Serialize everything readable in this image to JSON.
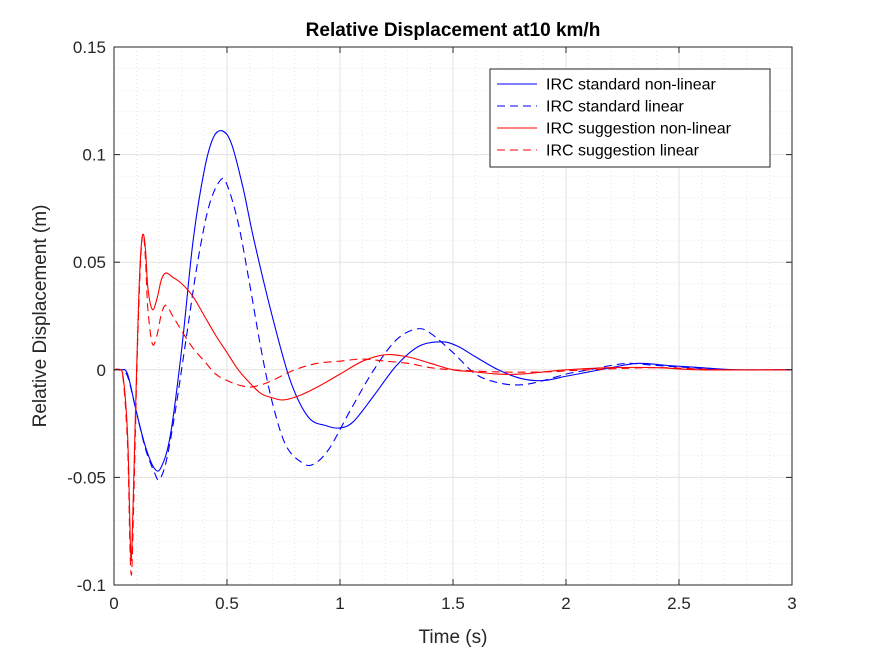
{
  "chart_data": {
    "type": "line",
    "title": "Relative Displacement at10 km/h",
    "xlabel": "Time (s)",
    "ylabel": "Relative Displacement (m)",
    "xlim": [
      0,
      3
    ],
    "ylim": [
      -0.1,
      0.15
    ],
    "xticks": [
      0,
      0.5,
      1,
      1.5,
      2,
      2.5,
      3
    ],
    "xtick_labels": [
      "0",
      "0.5",
      "1",
      "1.5",
      "2",
      "2.5",
      "3"
    ],
    "yticks": [
      -0.1,
      -0.05,
      0,
      0.05,
      0.1,
      0.15
    ],
    "ytick_labels": [
      "-0.1",
      "-0.05",
      "0",
      "0.05",
      "0.1",
      "0.15"
    ],
    "grid": true,
    "minor_grid": true,
    "legend_position": "top-right",
    "series": [
      {
        "name": "IRC standard non-linear",
        "color": "#0000ff",
        "dash": "solid",
        "points": [
          [
            0,
            0
          ],
          [
            0.03,
            0
          ],
          [
            0.06,
            -0.002
          ],
          [
            0.1,
            -0.02
          ],
          [
            0.14,
            -0.036
          ],
          [
            0.18,
            -0.046
          ],
          [
            0.21,
            -0.045
          ],
          [
            0.25,
            -0.03
          ],
          [
            0.3,
            0.01
          ],
          [
            0.35,
            0.06
          ],
          [
            0.4,
            0.093
          ],
          [
            0.44,
            0.108
          ],
          [
            0.48,
            0.111
          ],
          [
            0.52,
            0.105
          ],
          [
            0.57,
            0.085
          ],
          [
            0.62,
            0.06
          ],
          [
            0.7,
            0.025
          ],
          [
            0.78,
            -0.005
          ],
          [
            0.86,
            -0.022
          ],
          [
            0.94,
            -0.026
          ],
          [
            1.0,
            -0.027
          ],
          [
            1.06,
            -0.024
          ],
          [
            1.15,
            -0.012
          ],
          [
            1.25,
            0.002
          ],
          [
            1.35,
            0.011
          ],
          [
            1.45,
            0.013
          ],
          [
            1.52,
            0.011
          ],
          [
            1.6,
            0.006
          ],
          [
            1.7,
            0.0
          ],
          [
            1.8,
            -0.004
          ],
          [
            1.9,
            -0.005
          ],
          [
            2.0,
            -0.003
          ],
          [
            2.1,
            -0.001
          ],
          [
            2.2,
            0.001
          ],
          [
            2.32,
            0.003
          ],
          [
            2.45,
            0.002
          ],
          [
            2.6,
            0.001
          ],
          [
            2.75,
            0.0
          ],
          [
            3.0,
            0.0
          ]
        ]
      },
      {
        "name": "IRC standard linear",
        "color": "#0000ff",
        "dash": "dashed",
        "points": [
          [
            0,
            0
          ],
          [
            0.03,
            0
          ],
          [
            0.06,
            -0.003
          ],
          [
            0.1,
            -0.02
          ],
          [
            0.14,
            -0.037
          ],
          [
            0.18,
            -0.048
          ],
          [
            0.2,
            -0.051
          ],
          [
            0.23,
            -0.043
          ],
          [
            0.27,
            -0.02
          ],
          [
            0.32,
            0.015
          ],
          [
            0.37,
            0.05
          ],
          [
            0.42,
            0.076
          ],
          [
            0.47,
            0.088
          ],
          [
            0.5,
            0.086
          ],
          [
            0.55,
            0.068
          ],
          [
            0.6,
            0.04
          ],
          [
            0.65,
            0.01
          ],
          [
            0.7,
            -0.015
          ],
          [
            0.76,
            -0.035
          ],
          [
            0.83,
            -0.043
          ],
          [
            0.88,
            -0.044
          ],
          [
            0.95,
            -0.037
          ],
          [
            1.05,
            -0.018
          ],
          [
            1.15,
            0.0
          ],
          [
            1.25,
            0.014
          ],
          [
            1.34,
            0.019
          ],
          [
            1.4,
            0.017
          ],
          [
            1.5,
            0.008
          ],
          [
            1.6,
            -0.002
          ],
          [
            1.7,
            -0.006
          ],
          [
            1.8,
            -0.007
          ],
          [
            1.9,
            -0.005
          ],
          [
            2.0,
            -0.002
          ],
          [
            2.1,
            0.0
          ],
          [
            2.2,
            0.002
          ],
          [
            2.28,
            0.003
          ],
          [
            2.4,
            0.002
          ],
          [
            2.55,
            0.001
          ],
          [
            2.7,
            0.0
          ],
          [
            3.0,
            0.0
          ]
        ]
      },
      {
        "name": "IRC suggestion non-linear",
        "color": "#ff0000",
        "dash": "solid",
        "points": [
          [
            0,
            0
          ],
          [
            0.02,
            0
          ],
          [
            0.04,
            -0.003
          ],
          [
            0.06,
            -0.03
          ],
          [
            0.07,
            -0.07
          ],
          [
            0.075,
            -0.088
          ],
          [
            0.08,
            -0.08
          ],
          [
            0.09,
            -0.04
          ],
          [
            0.1,
            0.0
          ],
          [
            0.11,
            0.035
          ],
          [
            0.12,
            0.057
          ],
          [
            0.13,
            0.063
          ],
          [
            0.14,
            0.055
          ],
          [
            0.15,
            0.038
          ],
          [
            0.17,
            0.028
          ],
          [
            0.19,
            0.033
          ],
          [
            0.21,
            0.042
          ],
          [
            0.23,
            0.045
          ],
          [
            0.26,
            0.043
          ],
          [
            0.3,
            0.04
          ],
          [
            0.35,
            0.034
          ],
          [
            0.4,
            0.025
          ],
          [
            0.45,
            0.016
          ],
          [
            0.5,
            0.008
          ],
          [
            0.55,
            0.0
          ],
          [
            0.6,
            -0.006
          ],
          [
            0.65,
            -0.011
          ],
          [
            0.7,
            -0.013
          ],
          [
            0.75,
            -0.014
          ],
          [
            0.82,
            -0.012
          ],
          [
            0.9,
            -0.008
          ],
          [
            1.0,
            -0.002
          ],
          [
            1.1,
            0.004
          ],
          [
            1.2,
            0.007
          ],
          [
            1.3,
            0.006
          ],
          [
            1.4,
            0.003
          ],
          [
            1.5,
            0.0
          ],
          [
            1.6,
            -0.001
          ],
          [
            1.7,
            -0.002
          ],
          [
            1.8,
            -0.002
          ],
          [
            1.9,
            -0.001
          ],
          [
            2.0,
            0.0
          ],
          [
            2.2,
            0.001
          ],
          [
            2.4,
            0.001
          ],
          [
            2.6,
            0.0
          ],
          [
            3.0,
            0.0
          ]
        ]
      },
      {
        "name": "IRC suggestion linear",
        "color": "#ff0000",
        "dash": "dashed",
        "points": [
          [
            0,
            0
          ],
          [
            0.02,
            0
          ],
          [
            0.04,
            -0.004
          ],
          [
            0.06,
            -0.035
          ],
          [
            0.07,
            -0.08
          ],
          [
            0.075,
            -0.094
          ],
          [
            0.08,
            -0.09
          ],
          [
            0.09,
            -0.05
          ],
          [
            0.1,
            -0.005
          ],
          [
            0.11,
            0.03
          ],
          [
            0.12,
            0.055
          ],
          [
            0.13,
            0.063
          ],
          [
            0.14,
            0.05
          ],
          [
            0.15,
            0.028
          ],
          [
            0.17,
            0.012
          ],
          [
            0.19,
            0.016
          ],
          [
            0.21,
            0.026
          ],
          [
            0.23,
            0.03
          ],
          [
            0.26,
            0.025
          ],
          [
            0.3,
            0.018
          ],
          [
            0.35,
            0.01
          ],
          [
            0.4,
            0.004
          ],
          [
            0.45,
            -0.002
          ],
          [
            0.5,
            -0.005
          ],
          [
            0.55,
            -0.007
          ],
          [
            0.6,
            -0.008
          ],
          [
            0.65,
            -0.007
          ],
          [
            0.7,
            -0.005
          ],
          [
            0.8,
            0.0
          ],
          [
            0.9,
            0.003
          ],
          [
            1.0,
            0.004
          ],
          [
            1.1,
            0.005
          ],
          [
            1.2,
            0.004
          ],
          [
            1.3,
            0.003
          ],
          [
            1.4,
            0.001
          ],
          [
            1.5,
            0.0
          ],
          [
            1.7,
            -0.001
          ],
          [
            1.9,
            -0.001
          ],
          [
            2.1,
            0.0
          ],
          [
            2.4,
            0.001
          ],
          [
            2.7,
            0.0
          ],
          [
            3.0,
            0.0
          ]
        ]
      }
    ]
  }
}
